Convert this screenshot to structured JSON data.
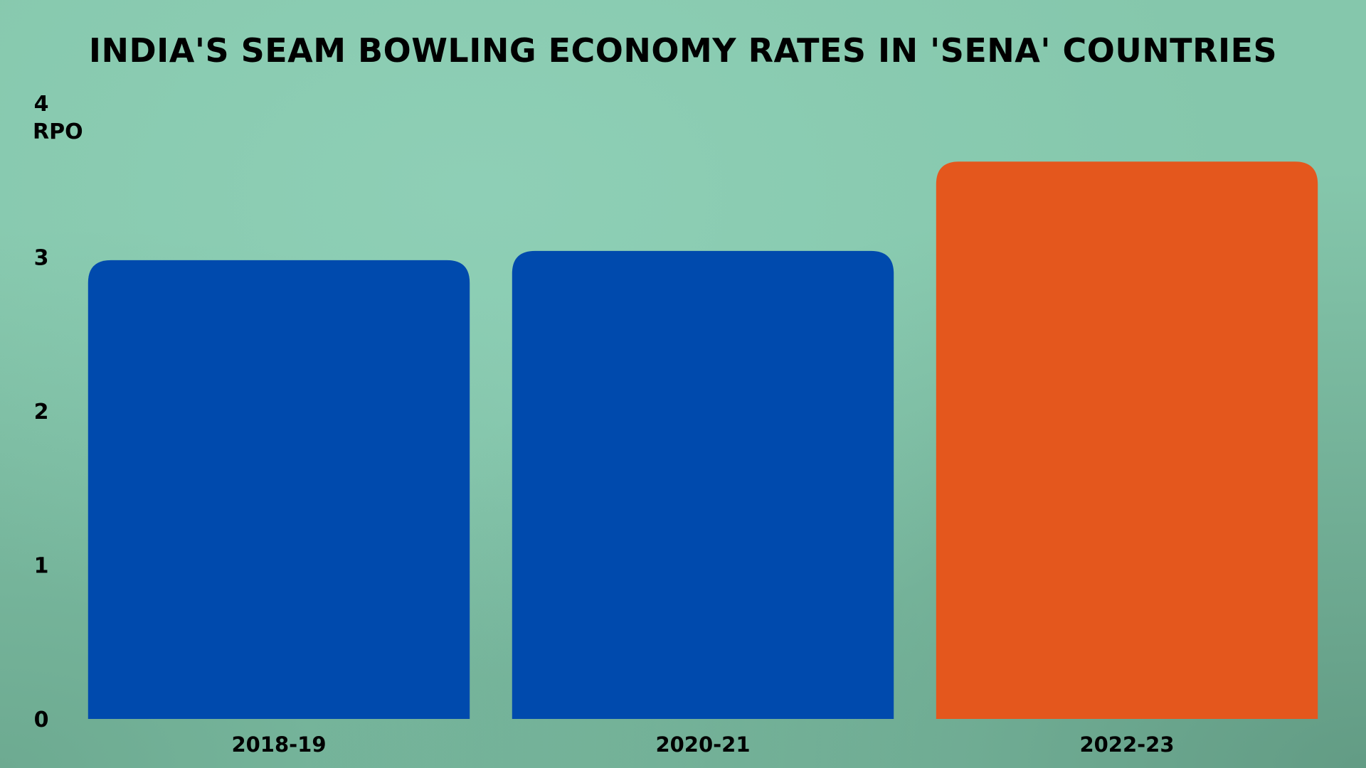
{
  "chart_data": {
    "type": "bar",
    "title": "India's seam bowling economy rates in 'SENA' countries",
    "ylabel": "RPO",
    "xlabel": "",
    "categories": [
      "2018-19",
      "2020-21",
      "2022-23"
    ],
    "values": [
      2.98,
      3.04,
      3.62
    ],
    "colors": [
      "#004aad",
      "#004aad",
      "#e4571d"
    ],
    "ylim": [
      0,
      4
    ],
    "yticks": [
      "0",
      "1",
      "2",
      "3",
      "4"
    ],
    "grid": false,
    "legend": "none"
  }
}
